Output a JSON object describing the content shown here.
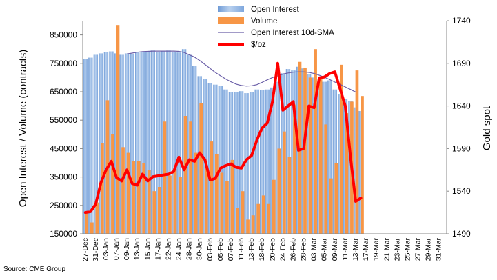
{
  "chart_data": {
    "type": "bar-line-combo",
    "title": "",
    "source": "Source: CME Group",
    "left_axis": {
      "label": "Open Interest / Volume (contracts)",
      "range": [
        150000,
        900000
      ],
      "ticks": [
        150000,
        250000,
        350000,
        450000,
        550000,
        650000,
        750000,
        850000
      ],
      "tick_labels": [
        "150000",
        "250000",
        "350000",
        "450000",
        "550000",
        "650000",
        "750000",
        "850000"
      ]
    },
    "right_axis": {
      "label": "Gold spot",
      "range": [
        1490,
        1740
      ],
      "ticks": [
        1490,
        1540,
        1590,
        1640,
        1690,
        1740
      ],
      "tick_labels": [
        "1490",
        "1540",
        "1590",
        "1640",
        "1690",
        "1740"
      ]
    },
    "x_axis": {
      "tick_labels": [
        "27-Dec",
        "31-Dec",
        "03-Jan",
        "07-Jan",
        "09-Jan",
        "13-Jan",
        "15-Jan",
        "17-Jan",
        "22-Jan",
        "24-Jan",
        "28-Jan",
        "30-Jan",
        "03-Feb",
        "05-Feb",
        "07-Feb",
        "11-Feb",
        "13-Feb",
        "18-Feb",
        "20-Feb",
        "24-Feb",
        "26-Feb",
        "28-Feb",
        "03-Mar",
        "05-Mar",
        "09-Mar",
        "11-Mar",
        "13-Mar",
        "17-Mar",
        "19-Mar",
        "21-Mar",
        "23-Mar",
        "25-Mar",
        "27-Mar",
        "29-Mar",
        "31-Mar"
      ],
      "slots_per_label": 2,
      "total_slots": 70
    },
    "legend": [
      {
        "name": "Open Interest",
        "kind": "bar",
        "color": "#8eb4e3"
      },
      {
        "name": "Volume",
        "kind": "bar",
        "color": "#f79646"
      },
      {
        "name": "Open Interest 10d-SMA",
        "kind": "line",
        "color": "#6b5fa8"
      },
      {
        "name": "$/oz",
        "kind": "line",
        "color": "#ff0000"
      }
    ],
    "series": [
      {
        "name": "Open Interest",
        "axis": "left",
        "values": [
          765000,
          770000,
          780000,
          785000,
          790000,
          792000,
          785000,
          780000,
          785000,
          782000,
          788000,
          790000,
          792000,
          795000,
          790000,
          792000,
          795000,
          790000,
          788000,
          800000,
          780000,
          740000,
          705000,
          695000,
          680000,
          675000,
          670000,
          658000,
          650000,
          648000,
          652000,
          645000,
          648000,
          658000,
          655000,
          658000,
          665000,
          685000,
          715000,
          730000,
          725000,
          738000,
          732000,
          712000,
          700000,
          680000,
          685000,
          690000,
          658000,
          642000,
          625000,
          618000,
          595000,
          582000
        ]
      },
      {
        "name": "Volume",
        "axis": "left",
        "values": [
          220000,
          190000,
          260000,
          470000,
          620000,
          500000,
          885000,
          455000,
          435000,
          405000,
          405000,
          400000,
          375000,
          300000,
          315000,
          545000,
          355000,
          380000,
          350000,
          565000,
          545000,
          435000,
          610000,
          390000,
          475000,
          430000,
          365000,
          335000,
          410000,
          240000,
          300000,
          200000,
          215000,
          255000,
          285000,
          255000,
          340000,
          450000,
          510000,
          420000,
          605000,
          755000,
          735000,
          700000,
          800000,
          700000,
          535000,
          345000,
          400000,
          745000,
          575000,
          615000,
          725000,
          635000
        ]
      },
      {
        "name": "Open Interest 10d-SMA",
        "axis": "left",
        "start_index": 8,
        "values": [
          783000,
          786000,
          789000,
          791000,
          792000,
          793000,
          793000,
          793000,
          793000,
          793000,
          792000,
          788000,
          780000,
          772000,
          760000,
          746000,
          732000,
          718000,
          706000,
          695000,
          685000,
          677000,
          672000,
          670000,
          671000,
          675000,
          683000,
          692000,
          700000,
          706000,
          712000,
          716000,
          719000,
          720000,
          720000,
          718000,
          714000,
          708000,
          701000,
          693000,
          684000,
          676000,
          667000,
          658000,
          649000
        ]
      },
      {
        "name": "$/oz",
        "axis": "right",
        "values": [
          1515,
          1516,
          1525,
          1550,
          1565,
          1575,
          1556,
          1552,
          1565,
          1549,
          1547,
          1560,
          1552,
          1557,
          1558,
          1559,
          1560,
          1563,
          1580,
          1565,
          1577,
          1575,
          1585,
          1577,
          1553,
          1555,
          1567,
          1570,
          1572,
          1568,
          1567,
          1577,
          1582,
          1600,
          1614,
          1620,
          1645,
          1690,
          1635,
          1640,
          1645,
          1588,
          1590,
          1640,
          1638,
          1673,
          1674,
          1678,
          1680,
          1660,
          1640,
          1580,
          1528,
          1532
        ]
      }
    ]
  }
}
